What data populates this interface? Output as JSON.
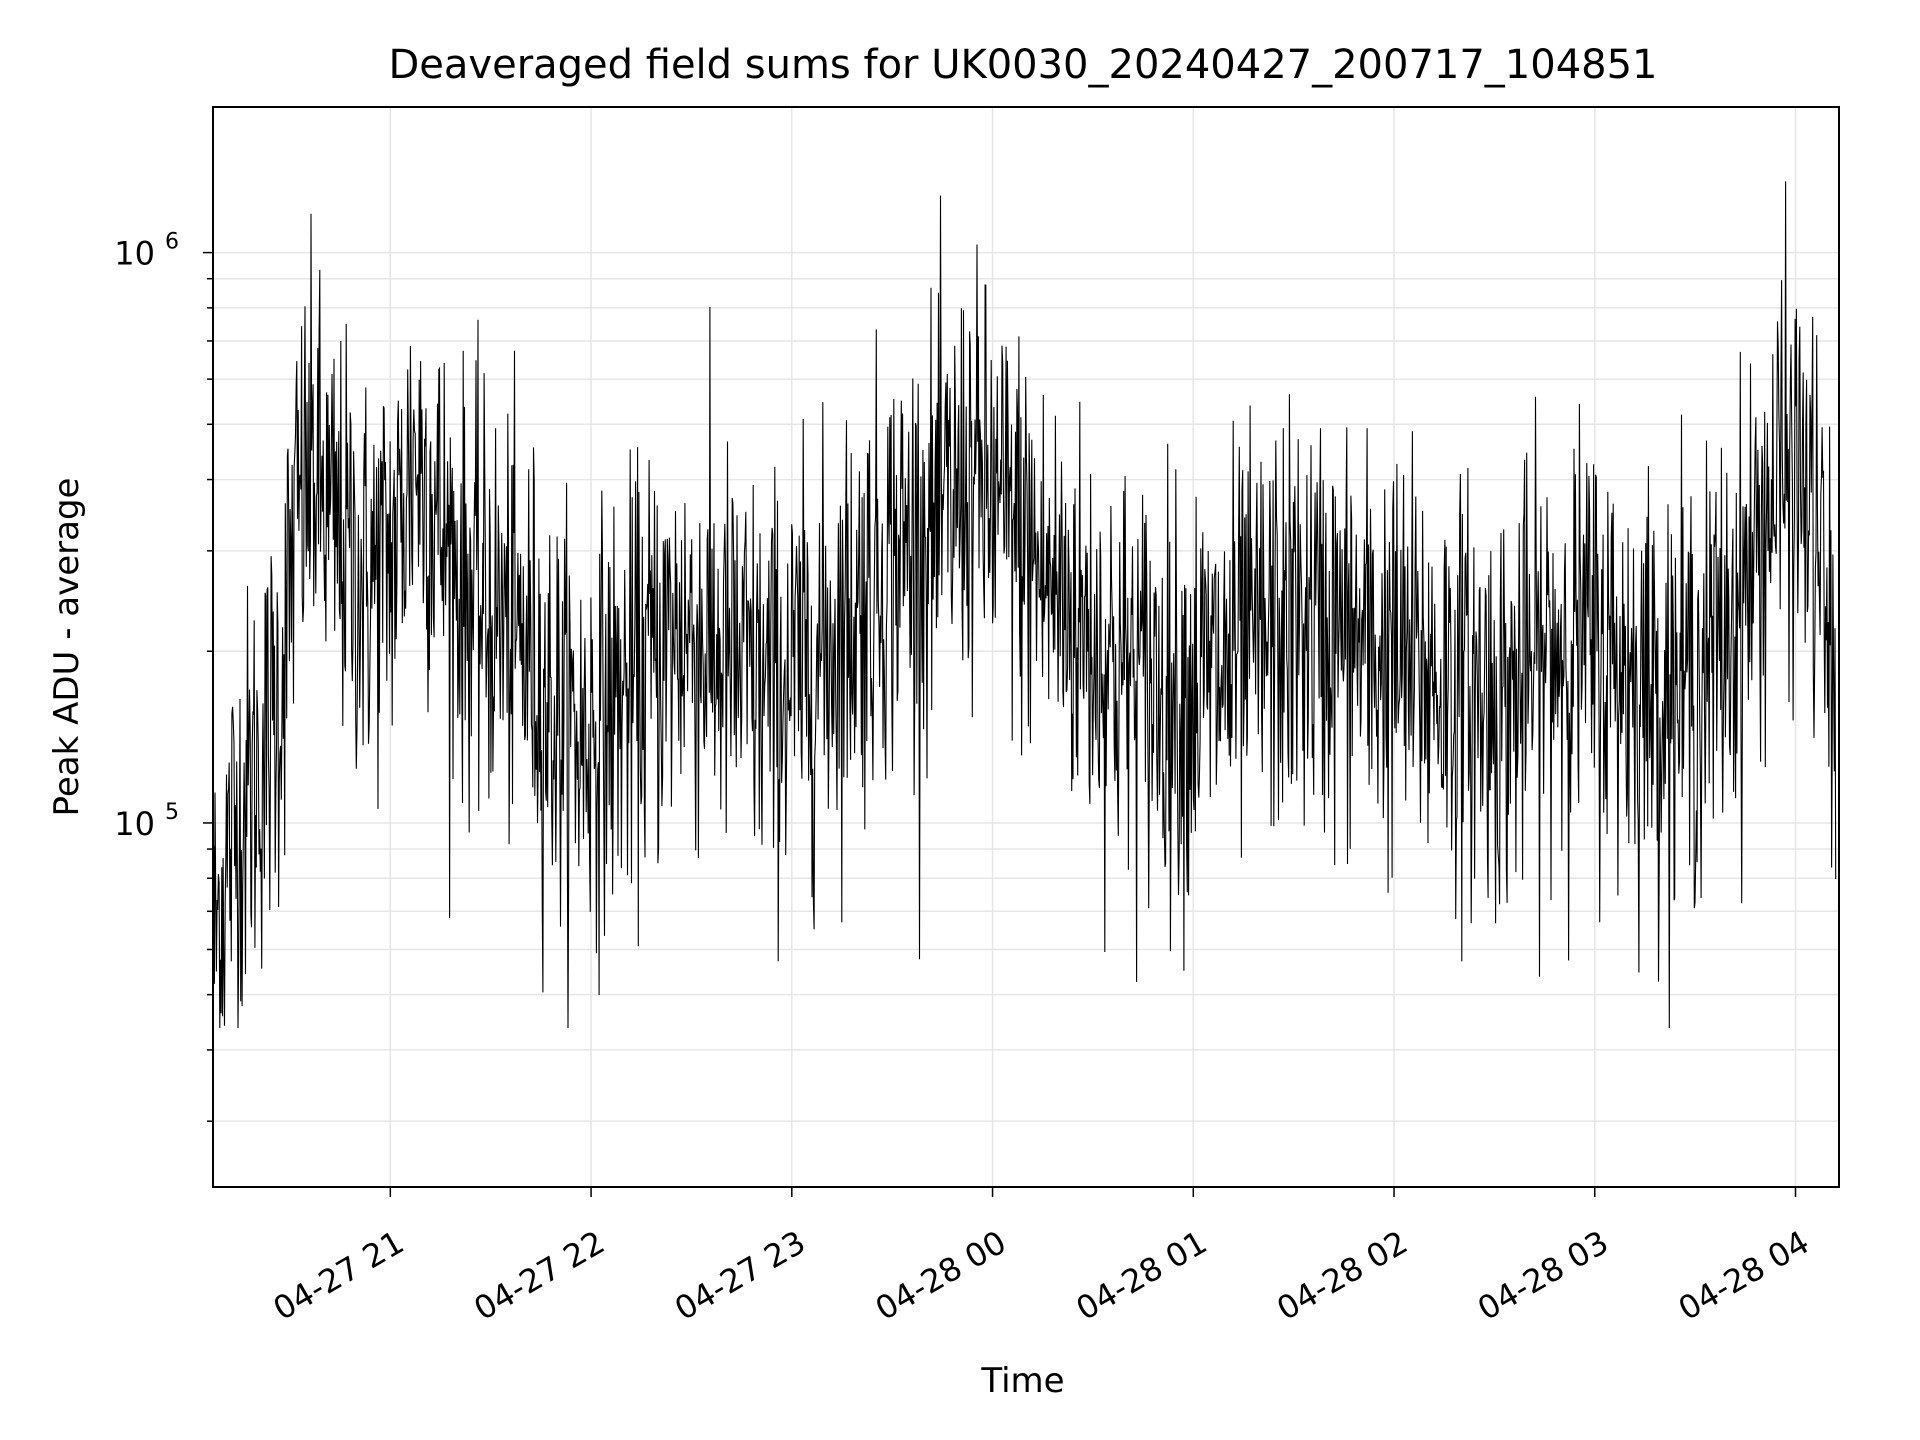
{
  "chart_data": {
    "type": "line",
    "title": "Deaveraged field sums for UK0030_20240427_200717_104851",
    "xlabel": "Time",
    "ylabel": "Peak ADU - average",
    "y_scale": "log",
    "ylim": [
      23000,
      1800000
    ],
    "xlim": [
      "2024-04-27 20:07",
      "2024-04-28 04:13"
    ],
    "x_ticks": [
      {
        "t": "2024-04-27 21:00",
        "label": "04-27 21"
      },
      {
        "t": "2024-04-27 22:00",
        "label": "04-27 22"
      },
      {
        "t": "2024-04-27 23:00",
        "label": "04-27 23"
      },
      {
        "t": "2024-04-28 00:00",
        "label": "04-28 00"
      },
      {
        "t": "2024-04-28 01:00",
        "label": "04-28 01"
      },
      {
        "t": "2024-04-28 02:00",
        "label": "04-28 02"
      },
      {
        "t": "2024-04-28 03:00",
        "label": "04-28 03"
      },
      {
        "t": "2024-04-28 04:00",
        "label": "04-28 04"
      }
    ],
    "y_ticks": [
      {
        "value": 100000,
        "base": "10",
        "exp": "5"
      },
      {
        "value": 1000000,
        "base": "10",
        "exp": "6"
      }
    ],
    "grid": true,
    "line_color": "#000000",
    "grid_color": "#e6e6e6",
    "series": [
      {
        "x": [
          "2024-04-27 20:07",
          "2024-04-27 20:12",
          "2024-04-27 20:17",
          "2024-04-27 20:22",
          "2024-04-27 20:27",
          "2024-04-27 20:32",
          "2024-04-27 20:37",
          "2024-04-27 20:42",
          "2024-04-27 20:47",
          "2024-04-27 20:52",
          "2024-04-27 20:57",
          "2024-04-27 21:02",
          "2024-04-27 21:07",
          "2024-04-27 21:12",
          "2024-04-27 21:17",
          "2024-04-27 21:22",
          "2024-04-27 21:27",
          "2024-04-27 21:32",
          "2024-04-27 21:37",
          "2024-04-27 21:42",
          "2024-04-27 21:47",
          "2024-04-27 21:52",
          "2024-04-27 21:57",
          "2024-04-27 22:02",
          "2024-04-27 22:07",
          "2024-04-27 22:12",
          "2024-04-27 22:17",
          "2024-04-27 22:22",
          "2024-04-27 22:27",
          "2024-04-27 22:32",
          "2024-04-27 22:37",
          "2024-04-27 22:42",
          "2024-04-27 22:47",
          "2024-04-27 22:52",
          "2024-04-27 22:57",
          "2024-04-27 23:02",
          "2024-04-27 23:07",
          "2024-04-27 23:12",
          "2024-04-27 23:17",
          "2024-04-27 23:22",
          "2024-04-27 23:27",
          "2024-04-27 23:32",
          "2024-04-27 23:37",
          "2024-04-27 23:42",
          "2024-04-27 23:47",
          "2024-04-27 23:52",
          "2024-04-27 23:57",
          "2024-04-28 00:02",
          "2024-04-28 00:07",
          "2024-04-28 00:12",
          "2024-04-28 00:17",
          "2024-04-28 00:22",
          "2024-04-28 00:27",
          "2024-04-28 00:32",
          "2024-04-28 00:37",
          "2024-04-28 00:42",
          "2024-04-28 00:47",
          "2024-04-28 00:52",
          "2024-04-28 00:57",
          "2024-04-28 01:02",
          "2024-04-28 01:07",
          "2024-04-28 01:12",
          "2024-04-28 01:17",
          "2024-04-28 01:22",
          "2024-04-28 01:27",
          "2024-04-28 01:32",
          "2024-04-28 01:37",
          "2024-04-28 01:42",
          "2024-04-28 01:47",
          "2024-04-28 01:52",
          "2024-04-28 01:57",
          "2024-04-28 02:02",
          "2024-04-28 02:07",
          "2024-04-28 02:12",
          "2024-04-28 02:17",
          "2024-04-28 02:22",
          "2024-04-28 02:27",
          "2024-04-28 02:32",
          "2024-04-28 02:37",
          "2024-04-28 02:42",
          "2024-04-28 02:47",
          "2024-04-28 02:52",
          "2024-04-28 02:57",
          "2024-04-28 03:02",
          "2024-04-28 03:07",
          "2024-04-28 03:12",
          "2024-04-28 03:17",
          "2024-04-28 03:22",
          "2024-04-28 03:27",
          "2024-04-28 03:32",
          "2024-04-28 03:37",
          "2024-04-28 03:42",
          "2024-04-28 03:47",
          "2024-04-28 03:52",
          "2024-04-28 03:57",
          "2024-04-28 04:02",
          "2024-04-28 04:07",
          "2024-04-28 04:12"
        ],
        "values": [
          60000,
          90000,
          110000,
          130000,
          170000,
          350000,
          420000,
          330000,
          300000,
          260000,
          280000,
          310000,
          450000,
          380000,
          300000,
          260000,
          240000,
          230000,
          210000,
          200000,
          160000,
          150000,
          140000,
          150000,
          160000,
          170000,
          190000,
          200000,
          220000,
          210000,
          200000,
          190000,
          180000,
          170000,
          175000,
          180000,
          190000,
          210000,
          230000,
          250000,
          280000,
          300000,
          310000,
          320000,
          350000,
          400000,
          380000,
          350000,
          330000,
          290000,
          260000,
          240000,
          220000,
          200000,
          190000,
          180000,
          175000,
          170000,
          165000,
          175000,
          180000,
          190000,
          200000,
          210000,
          220000,
          225000,
          220000,
          215000,
          210000,
          200000,
          195000,
          190000,
          185000,
          180000,
          175000,
          170000,
          165000,
          160000,
          170000,
          185000,
          200000,
          215000,
          210000,
          200000,
          190000,
          180000,
          175000,
          170000,
          175000,
          180000,
          200000,
          230000,
          280000,
          360000,
          420000,
          400000,
          300000,
          150000
        ]
      }
    ]
  }
}
